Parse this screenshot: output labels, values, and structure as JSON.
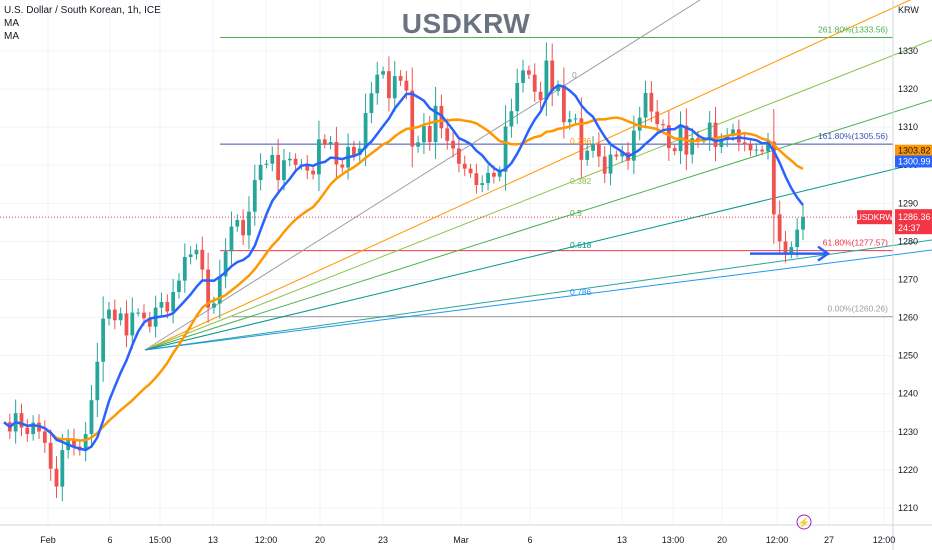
{
  "chart_data": {
    "type": "candlestick",
    "title": "USDKRW",
    "symbol_line": "U.S. Dollar / South Korean, 1h, ICE",
    "indicators": [
      "MA",
      "MA"
    ],
    "currency": "KRW",
    "ylim": [
      1206,
      1342
    ],
    "yticks": [
      1210,
      1220,
      1230,
      1240,
      1250,
      1260,
      1270,
      1280,
      1290,
      1300,
      1310,
      1320,
      1330
    ],
    "xticks": [
      "Feb",
      "6",
      "15:00",
      "13",
      "12:00",
      "20",
      "23",
      "Mar",
      "6",
      "13",
      "13:00",
      "20",
      "12:00",
      "27",
      "12:00"
    ],
    "last_price": {
      "label": "USDKRW",
      "value": "1286.36",
      "countdown": "24:37"
    },
    "ma_tags": [
      "1303.82",
      "1300.99"
    ],
    "fib_levels": [
      {
        "label": "261.80%(1333.56)",
        "value": 1333.56
      },
      {
        "label": "161.80%(1305.56)",
        "value": 1305.56
      },
      {
        "label": "61.80%(1277.57)",
        "value": 1277.57
      },
      {
        "label": "0.00%(1260.26)",
        "value": 1260.26
      }
    ],
    "fan_labels": [
      "0",
      "0.236",
      "0.382",
      "0.5",
      "0.618",
      "0.786"
    ],
    "colors": {
      "up": "#26a69a",
      "down": "#ef5350",
      "ma_fast": "#2962ff",
      "ma_slow": "#ff9800",
      "last": "#f23645"
    },
    "price_path": [
      1232.5,
      1230.1,
      1234.9,
      1231.1,
      1229.4,
      1232.4,
      1230.1,
      1227.1,
      1220.3,
      1215.6,
      1225.2,
      1228.2,
      1226.1,
      1225.1,
      1229.4,
      1238.3,
      1248.4,
      1259.7,
      1262.1,
      1259.3,
      1261.1,
      1255.3,
      1261.3,
      1261.3,
      1259.8,
      1257.6,
      1262.6,
      1264.1,
      1261.6,
      1266.7,
      1269.7,
      1275.9,
      1276.6,
      1277.8,
      1272.6,
      1262.6,
      1263.7,
      1270.8,
      1277.4,
      1283.9,
      1285.6,
      1281.6,
      1287.8,
      1296.1,
      1300.1,
      1300.4,
      1302.7,
      1296.1,
      1301.3,
      1301.7,
      1300.1,
      1300.2,
      1298.6,
      1297.6,
      1306.8,
      1305.6,
      1306.1,
      1300.2,
      1299.4,
      1304.8,
      1302.7,
      1304.4,
      1313.7,
      1318.9,
      1323.8,
      1324.7,
      1317.6,
      1323.4,
      1322.2,
      1319.6,
      1304.9,
      1306.0,
      1310.3,
      1306.1,
      1315.6,
      1309.7,
      1306.4,
      1304.4,
      1300.4,
      1299.1,
      1297.9,
      1294.8,
      1295.3,
      1298.0,
      1297.0,
      1298.3,
      1310.2,
      1314.2,
      1321.6,
      1324.9,
      1323.8,
      1319.3,
      1317.2,
      1327.5,
      1319.5,
      1320.9,
      1311.3,
      1312.1,
      1312.3,
      1301.4,
      1303.8,
      1305.6,
      1302.3,
      1297.8,
      1302.8,
      1302.3,
      1303.4,
      1301.2,
      1309.1,
      1312.5,
      1319.0,
      1314.1,
      1310.8,
      1310.5,
      1304.5,
      1303.7,
      1310.4,
      1302.8,
      1307.1,
      1306.3,
      1306.5,
      1311.2,
      1304.8,
      1306.6,
      1307.7,
      1309.4,
      1306.0,
      1305.5,
      1303.9,
      1304.1,
      1303.6,
      1306.2,
      1287.1,
      1280.0,
      1276.9,
      1278.5,
      1283.1,
      1286.4
    ]
  }
}
